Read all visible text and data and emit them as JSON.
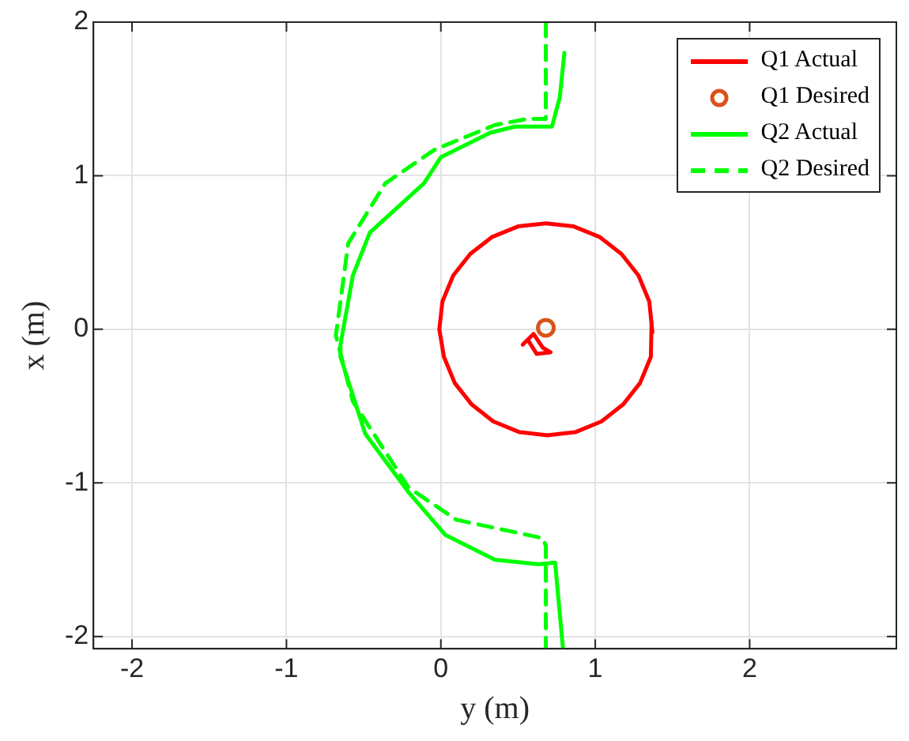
{
  "chart_data": {
    "type": "line",
    "xlabel": "y (m)",
    "ylabel": "x (m)",
    "xlim": [
      -2.25,
      2.95
    ],
    "ylim": [
      -2.08,
      2
    ],
    "xticks": [
      -2,
      -1,
      0,
      1,
      2
    ],
    "yticks": [
      -2,
      -1,
      0,
      1,
      2
    ],
    "grid": true,
    "legend": "top right",
    "series": [
      {
        "name": "Q1 Actual",
        "type": "line",
        "color": "#ff0000",
        "line_style": "solid",
        "marker": "none",
        "x": [
          1.37,
          1.35,
          1.28,
          1.17,
          1.03,
          0.86,
          0.68,
          0.5,
          0.33,
          0.19,
          0.08,
          0.01,
          -0.01,
          0.02,
          0.09,
          0.2,
          0.34,
          0.51,
          0.69,
          0.87,
          1.04,
          1.18,
          1.29,
          1.36,
          1.365
        ],
        "values": [
          -0.02,
          0.18,
          0.35,
          0.49,
          0.6,
          0.67,
          0.69,
          0.67,
          0.6,
          0.49,
          0.35,
          0.18,
          0,
          -0.18,
          -0.35,
          -0.49,
          -0.6,
          -0.67,
          -0.69,
          -0.67,
          -0.6,
          -0.49,
          -0.35,
          -0.18,
          0.05
        ]
      },
      {
        "type": "line",
        "color": "#ff0000",
        "line_style": "solid",
        "marker": "none",
        "x": [
          0.53,
          0.6,
          0.66,
          0.71,
          0.62,
          0.57
        ],
        "values": [
          -0.1,
          -0.03,
          -0.12,
          -0.15,
          -0.16,
          -0.08
        ]
      },
      {
        "name": "Q1 Desired",
        "type": "scatter",
        "color": "#d95319",
        "marker": "circle",
        "x": [
          0.68
        ],
        "values": [
          0.01
        ]
      },
      {
        "name": "Q2 Actual",
        "type": "line",
        "color": "#00ff00",
        "line_style": "solid",
        "marker": "none",
        "x": [
          0.8,
          0.77,
          0.72,
          0.48,
          0.32,
          0,
          -0.11,
          -0.46,
          -0.57,
          -0.65,
          -0.65,
          -0.49,
          -0.21,
          0.03,
          0.35,
          0.63,
          0.74,
          0.79
        ],
        "values": [
          1.8,
          1.51,
          1.32,
          1.32,
          1.28,
          1.12,
          0.95,
          0.63,
          0.35,
          -0.1,
          -0.18,
          -0.68,
          -1.06,
          -1.34,
          -1.5,
          -1.53,
          -1.52,
          -2.07
        ]
      },
      {
        "name": "Q2 Desired",
        "type": "line",
        "color": "#00ff00",
        "line_style": "dashed",
        "marker": "none",
        "x": [
          0.68,
          0.68,
          0.56,
          0.35,
          -0.04,
          -0.36,
          -0.6,
          -0.68,
          -0.57,
          -0.21,
          0.1,
          0.66,
          0.68,
          0.68
        ],
        "values": [
          2,
          1.37,
          1.37,
          1.33,
          1.17,
          0.95,
          0.56,
          -0.04,
          -0.47,
          -1.03,
          -1.24,
          -1.36,
          -1.41,
          -2.07
        ]
      }
    ]
  }
}
